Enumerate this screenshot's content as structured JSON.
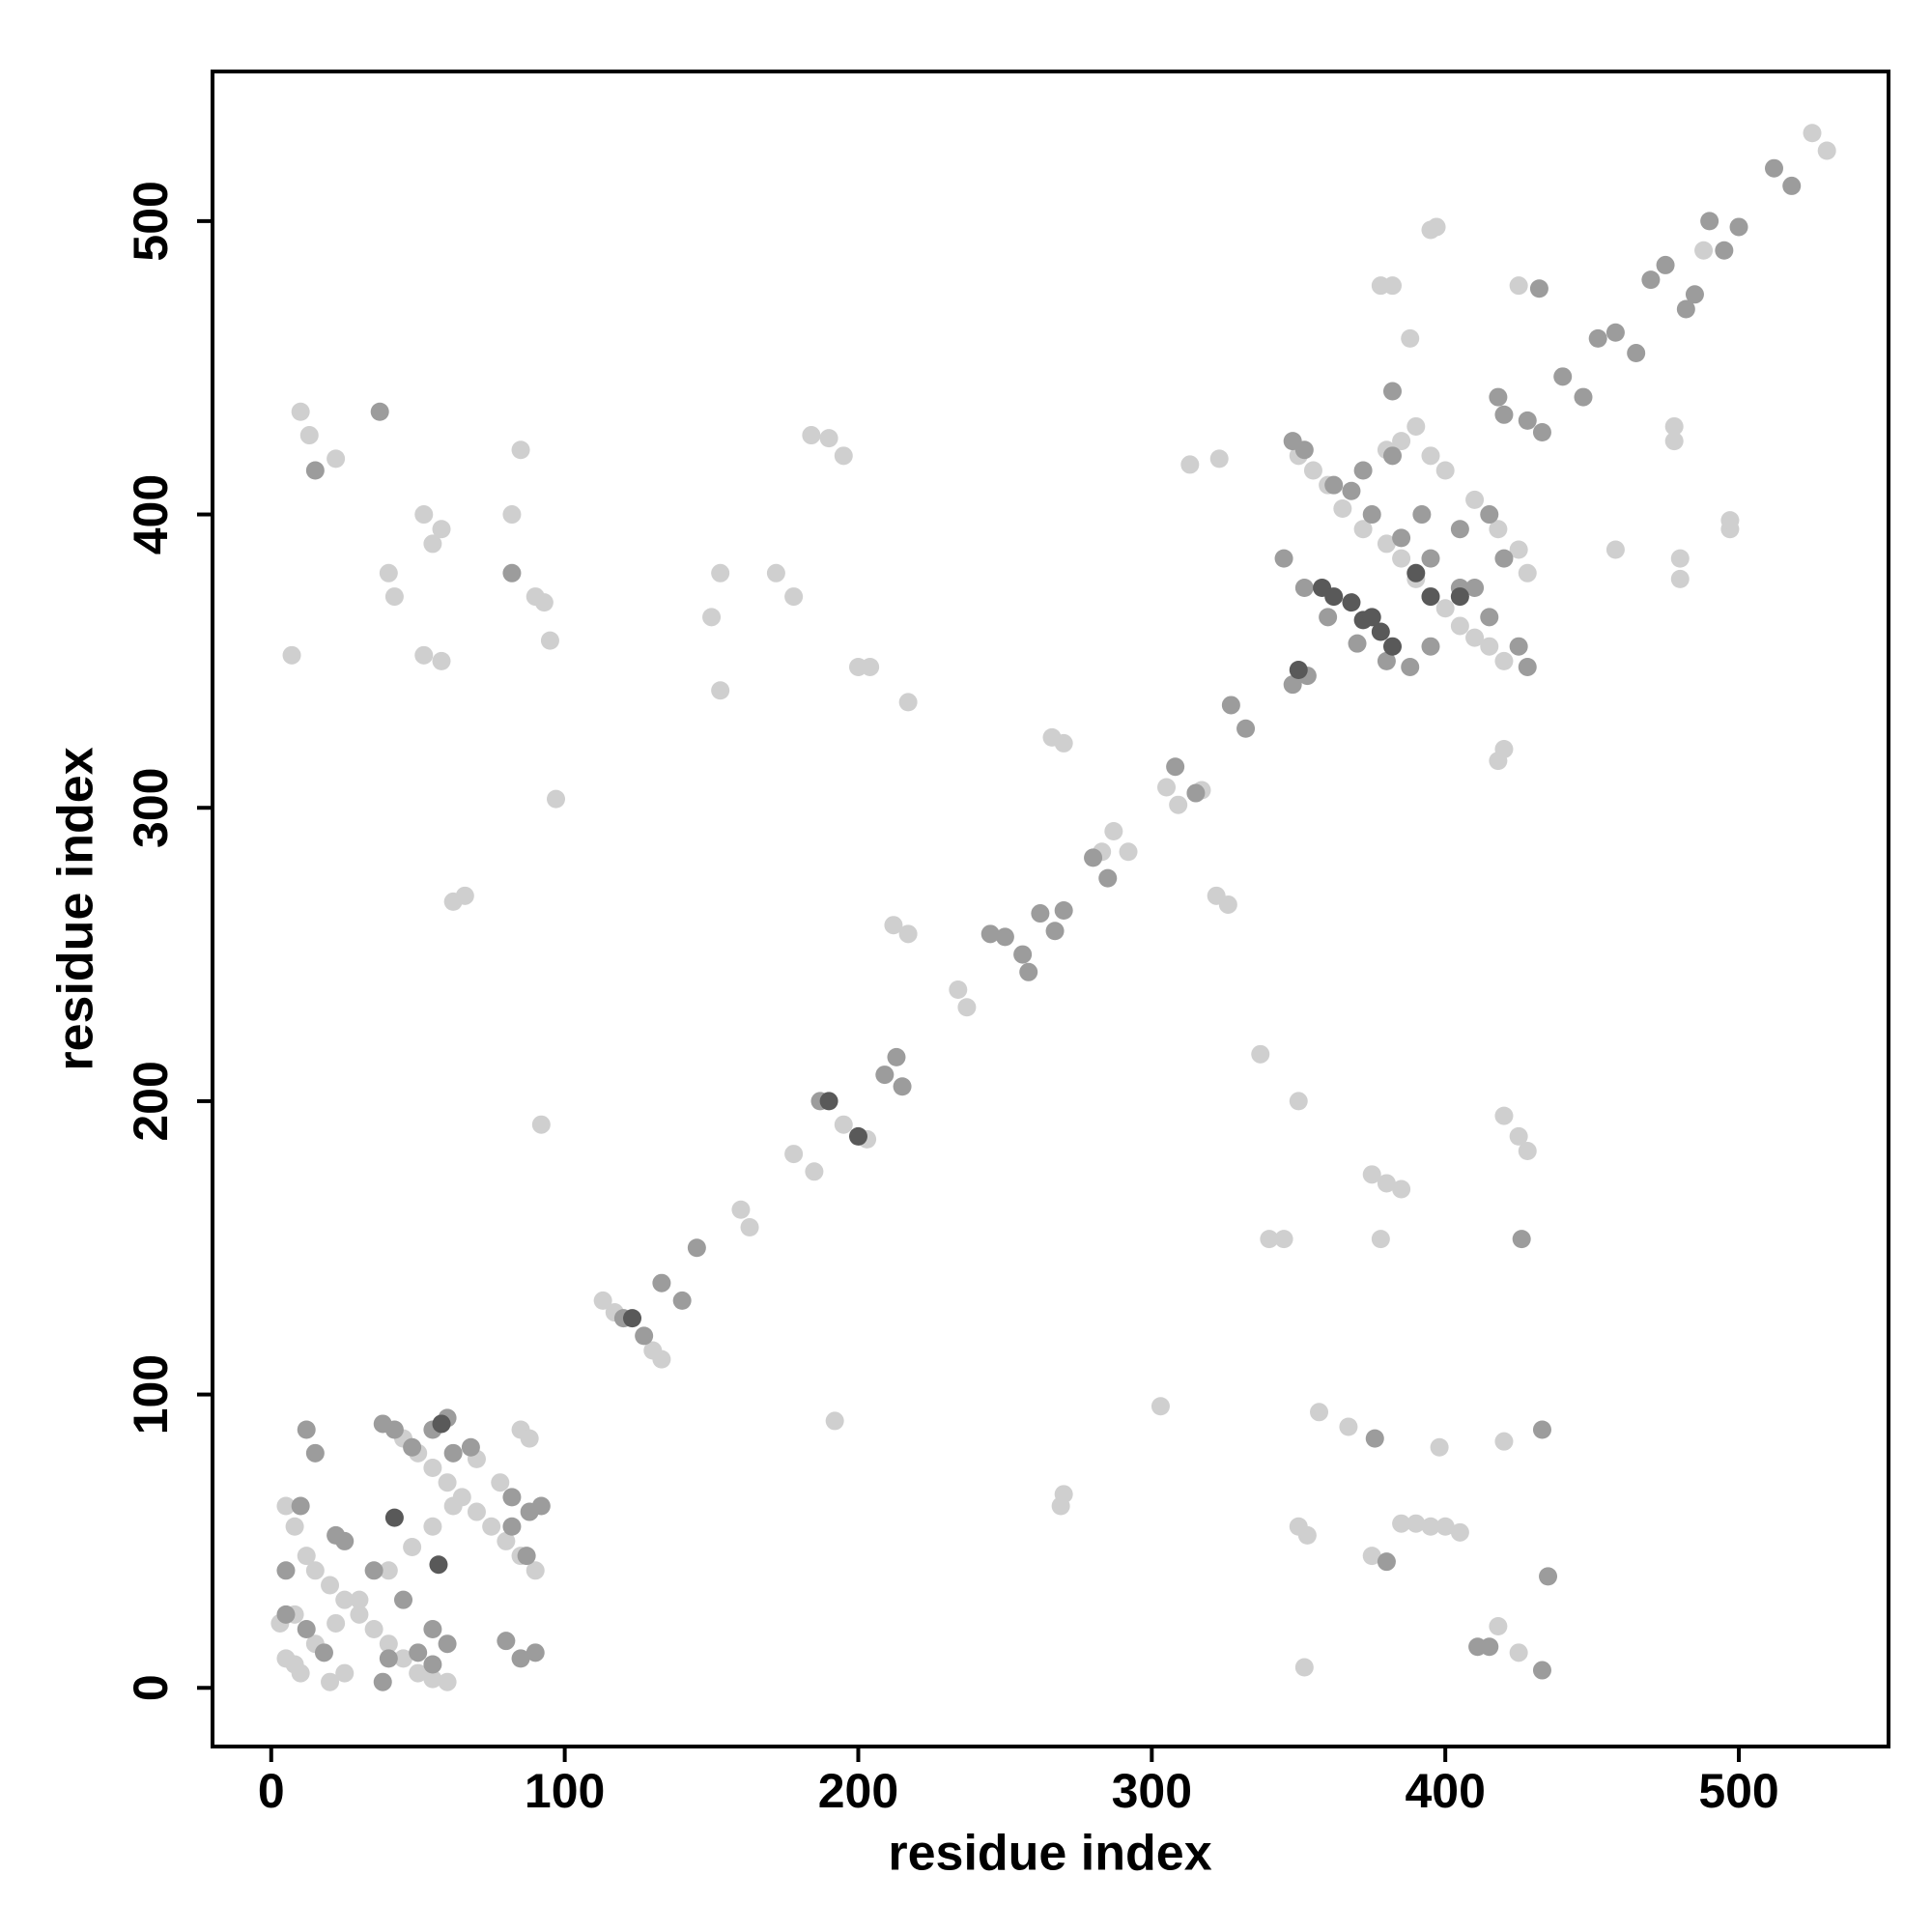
{
  "chart_data": {
    "type": "scatter",
    "xlabel": "residue index",
    "ylabel": "residue index",
    "xlim": [
      -20,
      551
    ],
    "ylim": [
      -20,
      551
    ],
    "xticks": [
      0,
      100,
      200,
      300,
      400,
      500
    ],
    "yticks": [
      0,
      100,
      200,
      300,
      400,
      500
    ],
    "grid": false,
    "series": [
      {
        "color": "#cfcfcf",
        "x": [
          5,
          8,
          12,
          15,
          20,
          25,
          30,
          35,
          40,
          45,
          50,
          55,
          60,
          62,
          55,
          48,
          40,
          30,
          22,
          15,
          8,
          3,
          8,
          10,
          20,
          25,
          5,
          45,
          50,
          55,
          60,
          65,
          70,
          75,
          80,
          85,
          90,
          70,
          78,
          85,
          88,
          113,
          117,
          130,
          133,
          160,
          163,
          178,
          185,
          195,
          203,
          234,
          237,
          283,
          287,
          292,
          305,
          309,
          317,
          350,
          355,
          360,
          365,
          372,
          380,
          385,
          390,
          395,
          400,
          405,
          410,
          415,
          420,
          395,
          400,
          410,
          418,
          425,
          428,
          380,
          385,
          390,
          395,
          397,
          378,
          382,
          388,
          425,
          478,
          478,
          480,
          480,
          497,
          497,
          488,
          525,
          530,
          7,
          10,
          13,
          22,
          42,
          52,
          55,
          58,
          58,
          52,
          62,
          66,
          82,
          85,
          90,
          93,
          95,
          97,
          92,
          150,
          153,
          153,
          172,
          178,
          184,
          190,
          195,
          200,
          204,
          217,
          212,
          217,
          266,
          270,
          322,
          326,
          313,
          323,
          192,
          269,
          270,
          303,
          337,
          340,
          345,
          350,
          352,
          357,
          367,
          375,
          380,
          385,
          378,
          385,
          390,
          395,
          400,
          405,
          375,
          398,
          418,
          420,
          418,
          420,
          425,
          428,
          425,
          350,
          353,
          420,
          458,
          40
        ],
        "values": [
          62,
          55,
          45,
          40,
          35,
          30,
          25,
          20,
          15,
          10,
          5,
          3,
          2,
          62,
          55,
          48,
          40,
          30,
          22,
          15,
          8,
          22,
          25,
          5,
          2,
          5,
          10,
          85,
          80,
          75,
          70,
          65,
          60,
          55,
          50,
          45,
          40,
          78,
          70,
          88,
          85,
          132,
          128,
          115,
          112,
          163,
          157,
          182,
          176,
          192,
          187,
          238,
          232,
          285,
          292,
          285,
          307,
          301,
          306,
          420,
          415,
          410,
          402,
          395,
          390,
          385,
          378,
          372,
          368,
          362,
          358,
          355,
          350,
          420,
          415,
          405,
          395,
          388,
          380,
          422,
          425,
          430,
          497,
          498,
          478,
          478,
          460,
          478,
          425,
          430,
          385,
          378,
          395,
          398,
          490,
          530,
          524,
          352,
          435,
          427,
          419,
          372,
          400,
          390,
          395,
          350,
          352,
          268,
          270,
          400,
          422,
          372,
          370,
          357,
          303,
          192,
          365,
          380,
          340,
          380,
          372,
          427,
          426,
          420,
          348,
          348,
          336,
          260,
          257,
          324,
          322,
          270,
          267,
          417,
          419,
          91,
          62,
          66,
          96,
          216,
          153,
          153,
          200,
          7,
          94,
          89,
          175,
          172,
          170,
          153,
          56,
          56,
          55,
          55,
          53,
          45,
          82,
          316,
          320,
          21,
          195,
          188,
          183,
          12,
          55,
          52,
          84,
          388,
          380
        ]
      },
      {
        "color": "#9c9c9c",
        "x": [
          120,
          127,
          133,
          140,
          145,
          187,
          209,
          213,
          215,
          245,
          250,
          256,
          258,
          262,
          267,
          270,
          280,
          285,
          308,
          315,
          327,
          332,
          353,
          418,
          420,
          428,
          433,
          440,
          447,
          452,
          458,
          465,
          470,
          475,
          482,
          485,
          490,
          495,
          500,
          512,
          518,
          411,
          415,
          435,
          433,
          426,
          432,
          382,
          433,
          380,
          376,
          5,
          12,
          18,
          25,
          35,
          45,
          55,
          60,
          38,
          42,
          48,
          55,
          60,
          62,
          68,
          82,
          88,
          92,
          85,
          90,
          80,
          12,
          15,
          10,
          5,
          22,
          40,
          50,
          55,
          82,
          87,
          38,
          37,
          15,
          82,
          348,
          352,
          362,
          368,
          375,
          385,
          395,
          405,
          415,
          425,
          428,
          372,
          382,
          345,
          352,
          360,
          370,
          380,
          388,
          395,
          410,
          420,
          405,
          415,
          348,
          392
        ],
        "values": [
          126,
          120,
          138,
          132,
          150,
          200,
          209,
          215,
          205,
          257,
          256,
          250,
          244,
          264,
          258,
          265,
          283,
          276,
          314,
          305,
          335,
          327,
          345,
          440,
          434,
          432,
          428,
          447,
          440,
          460,
          462,
          455,
          480,
          485,
          470,
          475,
          500,
          490,
          498,
          518,
          512,
          14,
          14,
          38,
          6,
          153,
          477,
          442,
          88,
          43,
          85,
          25,
          20,
          12,
          50,
          40,
          30,
          20,
          15,
          90,
          88,
          82,
          88,
          92,
          80,
          82,
          65,
          60,
          62,
          10,
          12,
          16,
          88,
          80,
          62,
          40,
          52,
          10,
          12,
          8,
          55,
          45,
          2,
          435,
          415,
          380,
          425,
          422,
          410,
          408,
          400,
          392,
          385,
          375,
          365,
          355,
          348,
          415,
          420,
          385,
          375,
          365,
          356,
          350,
          348,
          355,
          375,
          385,
          395,
          400,
          342,
          400
        ]
      },
      {
        "color": "#595959",
        "x": [
          42,
          57,
          58,
          123,
          190,
          200,
          358,
          362,
          368,
          372,
          378,
          382,
          375,
          350,
          390,
          395,
          405
        ],
        "values": [
          58,
          42,
          90,
          126,
          200,
          188,
          375,
          372,
          370,
          364,
          360,
          355,
          365,
          347,
          380,
          372,
          372
        ]
      }
    ]
  }
}
